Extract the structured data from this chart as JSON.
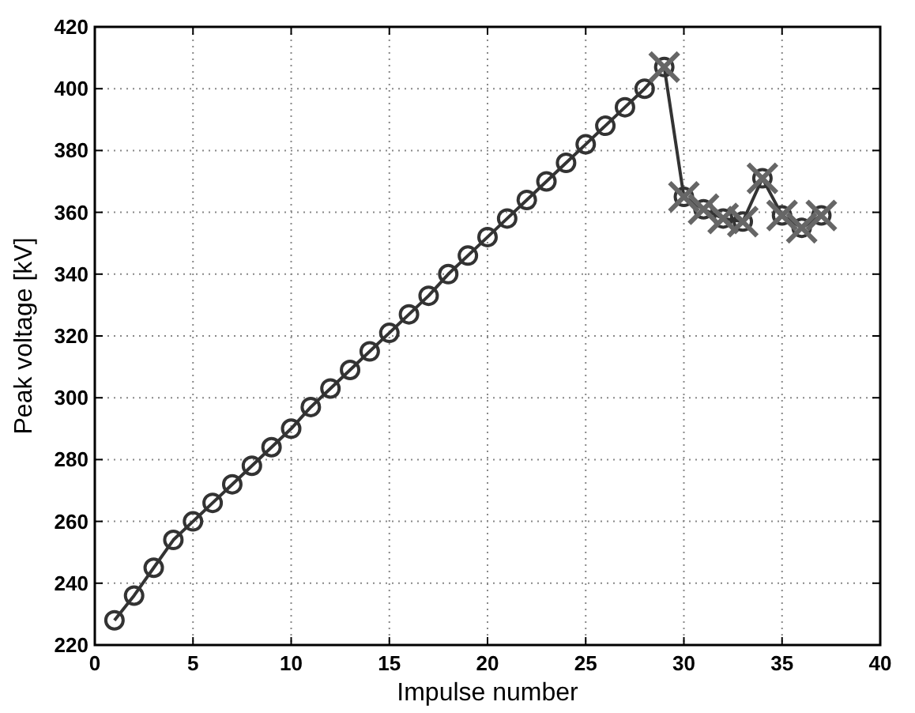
{
  "chart_data": {
    "type": "line",
    "xlabel": "Impulse number",
    "ylabel": "Peak voltage [kV]",
    "xlim": [
      0,
      40
    ],
    "xticks": [
      0,
      5,
      10,
      15,
      20,
      25,
      30,
      35,
      40
    ],
    "ylim": [
      220,
      420
    ],
    "yticks": [
      220,
      240,
      260,
      280,
      300,
      320,
      340,
      360,
      380,
      400,
      420
    ],
    "grid": true,
    "series": [
      {
        "color": "#333333",
        "marker": "circle",
        "line_style": "solid",
        "x": [
          1,
          2,
          3,
          4,
          5,
          6,
          7,
          8,
          9,
          10,
          11,
          12,
          13,
          14,
          15,
          16,
          17,
          18,
          19,
          20,
          21,
          22,
          23,
          24,
          25,
          26,
          27,
          28,
          29,
          30,
          31,
          32,
          33,
          34,
          35,
          36,
          37
        ],
        "values": [
          228,
          236,
          245,
          254,
          260,
          266,
          272,
          278,
          284,
          290,
          297,
          303,
          309,
          315,
          321,
          327,
          333,
          340,
          346,
          352,
          358,
          364,
          370,
          376,
          382,
          388,
          394,
          400,
          407,
          365,
          361,
          358,
          357,
          371,
          359,
          355,
          359
        ]
      },
      {
        "type": "scatter",
        "color": "#666666",
        "marker": "cross",
        "x": [
          29,
          30,
          31,
          32,
          33,
          34,
          35,
          36,
          37
        ],
        "values": [
          407,
          365,
          361,
          358,
          357,
          371,
          359,
          355,
          359
        ]
      }
    ]
  }
}
